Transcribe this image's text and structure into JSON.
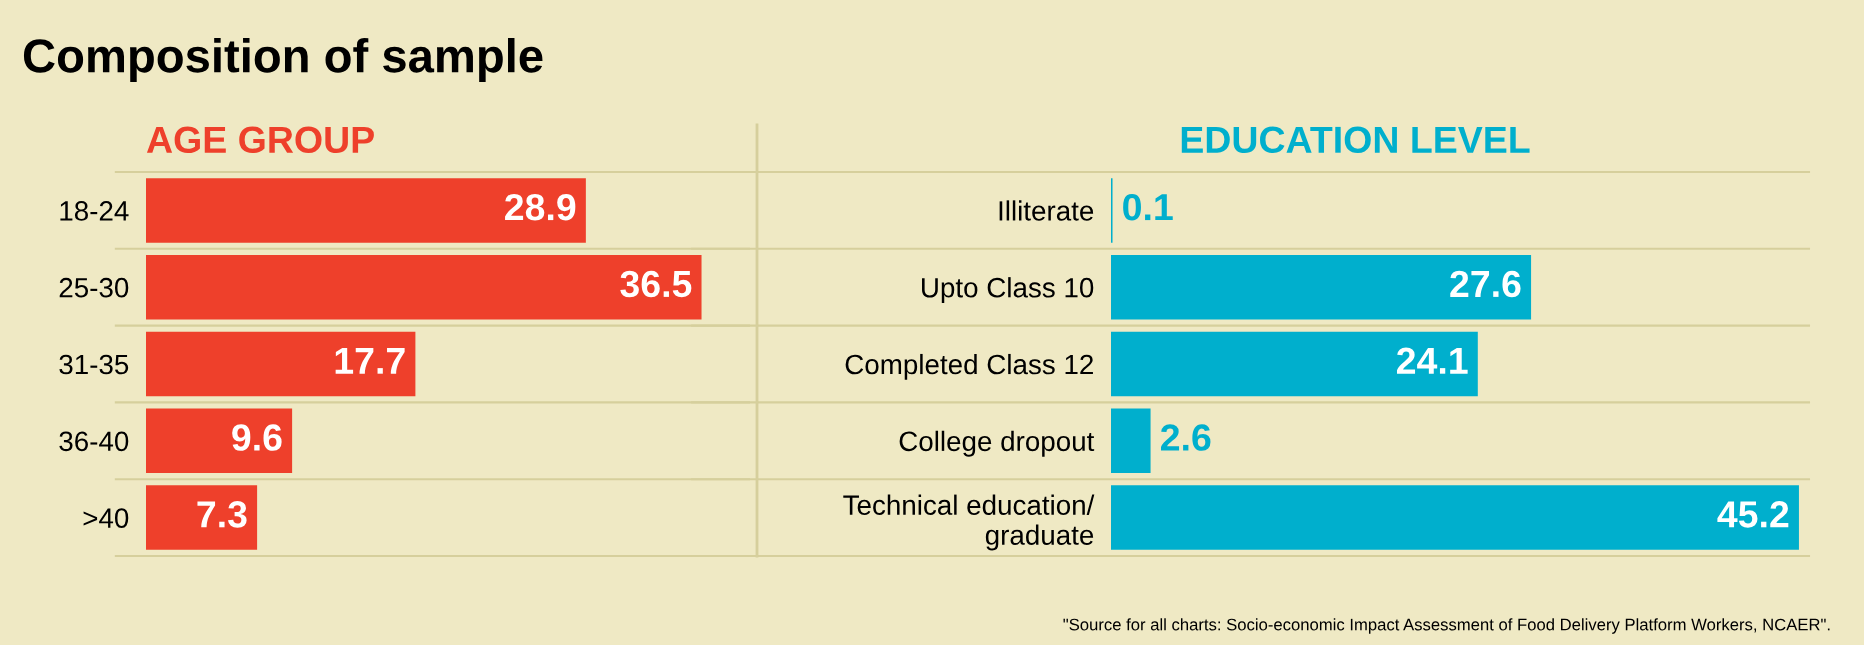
{
  "chart_data": [
    {
      "type": "bar",
      "orientation": "horizontal",
      "title": "Composition of sample",
      "subtitle": "AGE GROUP",
      "categories": [
        "18-24",
        "25-30",
        "31-35",
        "36-40",
        ">40"
      ],
      "values": [
        28.9,
        36.5,
        17.7,
        9.6,
        7.3
      ],
      "color": "#ee402b",
      "data_labels": true
    },
    {
      "type": "bar",
      "orientation": "horizontal",
      "subtitle": "EDUCATION LEVEL",
      "categories": [
        "Illiterate",
        "Upto Class 10",
        "Completed Class 12",
        "College dropout",
        "Technical education/\ngraduate"
      ],
      "values": [
        0.1,
        27.6,
        24.1,
        2.6,
        45.2
      ],
      "color": "#00afcd",
      "data_labels": true,
      "annotations": [
        "\"Source for all charts: Socio-economic Impact Assessment of Food Delivery Platform Workers, NCAER\"."
      ]
    }
  ]
}
